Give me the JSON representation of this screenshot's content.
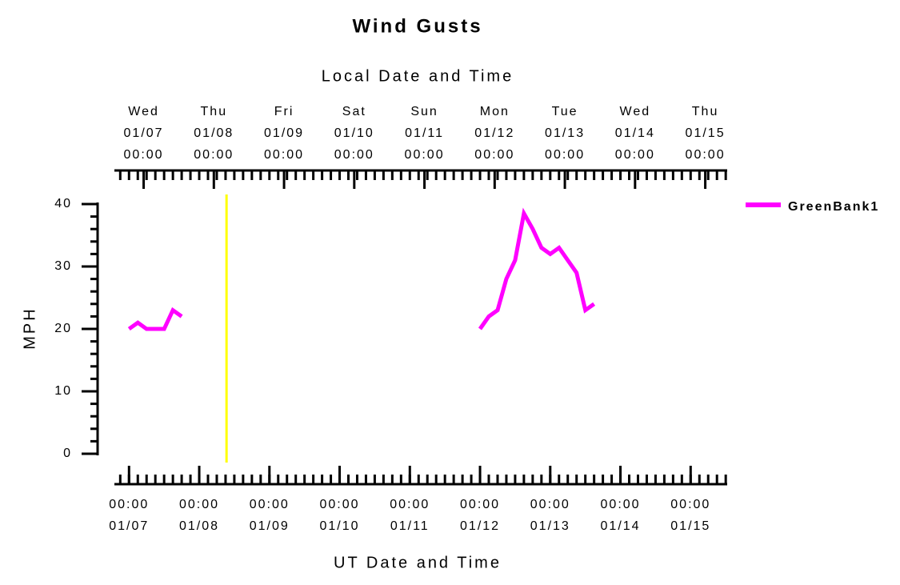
{
  "chart_data": {
    "type": "line",
    "title": "Wind Gusts",
    "x2_label": "Local Date and Time",
    "x_label": "UT Date and Time",
    "y_label": "MPH",
    "x": [
      "01/07 00:00",
      "01/07 03:00",
      "01/07 06:00",
      "01/07 09:00",
      "01/07 12:00",
      "01/07 15:00",
      "01/07 18:00",
      "01/07 21:00",
      "01/12 00:00",
      "01/12 03:00",
      "01/12 06:00",
      "01/12 09:00",
      "01/12 12:00",
      "01/12 15:00",
      "01/12 18:00",
      "01/12 21:00",
      "01/13 00:00",
      "01/13 03:00",
      "01/13 06:00",
      "01/13 09:00",
      "01/13 12:00",
      "01/13 15:00"
    ],
    "series": [
      {
        "name": "GreenBank1",
        "color": "#ff00ff",
        "values": [
          20,
          21,
          20,
          20,
          20,
          23,
          22,
          null,
          20,
          22,
          23,
          28,
          31,
          38.5,
          36,
          33,
          32,
          33,
          31,
          29,
          23,
          24
        ]
      }
    ],
    "xlim": [
      "01/06 19:00",
      "01/15 12:30"
    ],
    "xticks": [
      {
        "value": "01/07 00:00",
        "label": [
          "00:00",
          "01/07"
        ]
      },
      {
        "value": "01/08 00:00",
        "label": [
          "00:00",
          "01/08"
        ]
      },
      {
        "value": "01/09 00:00",
        "label": [
          "00:00",
          "01/09"
        ]
      },
      {
        "value": "01/10 00:00",
        "label": [
          "00:00",
          "01/10"
        ]
      },
      {
        "value": "01/11 00:00",
        "label": [
          "00:00",
          "01/11"
        ]
      },
      {
        "value": "01/12 00:00",
        "label": [
          "00:00",
          "01/12"
        ]
      },
      {
        "value": "01/13 00:00",
        "label": [
          "00:00",
          "01/13"
        ]
      },
      {
        "value": "01/14 00:00",
        "label": [
          "00:00",
          "01/14"
        ]
      },
      {
        "value": "01/15 00:00",
        "label": [
          "00:00",
          "01/15"
        ]
      }
    ],
    "x2ticks": [
      {
        "value": "01/07 05:00",
        "label": [
          "Wed",
          "01/07",
          "00:00"
        ]
      },
      {
        "value": "01/08 05:00",
        "label": [
          "Thu",
          "01/08",
          "00:00"
        ]
      },
      {
        "value": "01/09 05:00",
        "label": [
          "Fri",
          "01/09",
          "00:00"
        ]
      },
      {
        "value": "01/10 05:00",
        "label": [
          "Sat",
          "01/10",
          "00:00"
        ]
      },
      {
        "value": "01/11 05:00",
        "label": [
          "Sun",
          "01/11",
          "00:00"
        ]
      },
      {
        "value": "01/12 05:00",
        "label": [
          "Mon",
          "01/12",
          "00:00"
        ]
      },
      {
        "value": "01/13 05:00",
        "label": [
          "Tue",
          "01/13",
          "00:00"
        ]
      },
      {
        "value": "01/14 05:00",
        "label": [
          "Wed",
          "01/14",
          "00:00"
        ]
      },
      {
        "value": "01/15 05:00",
        "label": [
          "Thu",
          "01/15",
          "00:00"
        ]
      }
    ],
    "minor_tick_hours": 3,
    "ylim": [
      0,
      40
    ],
    "yticks": [
      0,
      10,
      20,
      30,
      40
    ],
    "y_minor_step": 2,
    "marker_x": "01/08 09:20",
    "marker_color": "#ffff00",
    "legend": "upper right"
  }
}
